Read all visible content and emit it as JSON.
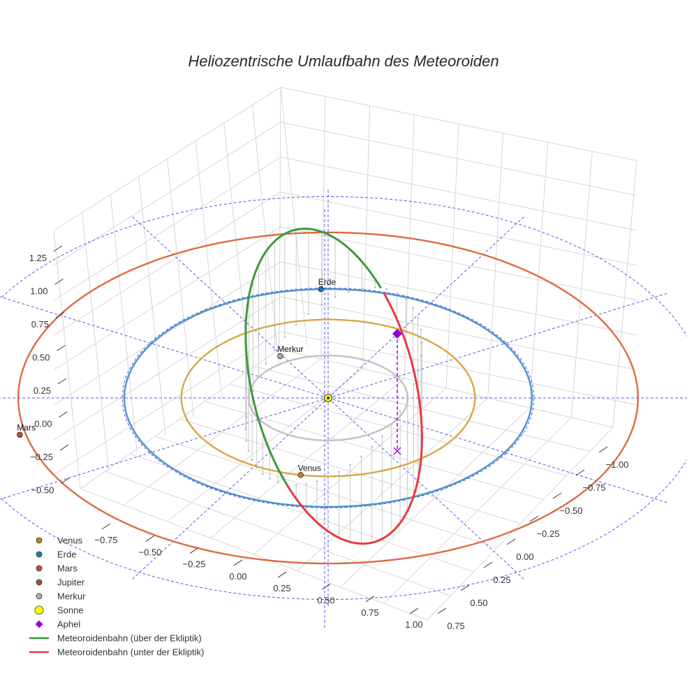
{
  "chart_data": {
    "type": "scatter3d",
    "title": "Heliozentrische Umlaufbahn des Meteoroiden",
    "axes": {
      "x_ticks": [
        "−0.75",
        "−0.50",
        "−0.25",
        "0.00",
        "0.25",
        "0.50",
        "0.75",
        "1.00"
      ],
      "y_ticks": [
        "−1.00",
        "−0.75",
        "−0.50",
        "−0.25",
        "0.00",
        "0.25",
        "0.50",
        "0.75"
      ],
      "z_ticks": [
        "1.25",
        "1.00",
        "0.75",
        "0.50",
        "0.25",
        "0.00",
        "−0.25",
        "−0.50"
      ],
      "x_range": [
        -0.85,
        1.05
      ],
      "y_range": [
        -1.1,
        0.85
      ],
      "z_range": [
        -0.55,
        1.35
      ]
    },
    "orbits": [
      {
        "name": "Merkur",
        "radius_au": 0.39,
        "color": "#c8bebe"
      },
      {
        "name": "Venus",
        "radius_au": 0.72,
        "color": "#d8a545"
      },
      {
        "name": "Erde",
        "radius_au": 1.0,
        "color": "#4a94c8"
      },
      {
        "name": "Mars",
        "radius_au": 1.52,
        "color": "#dd6a40"
      }
    ],
    "planets": [
      {
        "label": "Erde",
        "color": "#1f77b4"
      },
      {
        "label": "Merkur",
        "color": "#aaaaaa"
      },
      {
        "label": "Venus",
        "color": "#c7821a"
      },
      {
        "label": "Mars",
        "color": "#c1502e"
      }
    ],
    "meteoroid_orbit": {
      "above_label": "Meteoroidenbahn (über der Ekliptik)",
      "below_label": "Meteoroidenbahn (unter der Ekliptik)",
      "above_color": "#3a9a3a",
      "below_color": "#e8383f"
    },
    "aphel": {
      "label": "Aphel",
      "color": "#9400d3"
    },
    "legend": [
      {
        "label": "Venus",
        "color": "#c7821a",
        "symbol": "circle"
      },
      {
        "label": "Erde",
        "color": "#1f77b4",
        "symbol": "circle"
      },
      {
        "label": "Mars",
        "color": "#c1502e",
        "symbol": "circle"
      },
      {
        "label": "Jupiter",
        "color": "#a0522d",
        "symbol": "circle"
      },
      {
        "label": "Merkur",
        "color": "#bbaaaa",
        "symbol": "circle"
      },
      {
        "label": "Sonne",
        "color": "#ffff00",
        "symbol": "big-circle"
      },
      {
        "label": "Aphel",
        "color": "#9400d3",
        "symbol": "diamond"
      },
      {
        "label": "Meteoroidenbahn (über der Ekliptik)",
        "color": "#2a9a2a",
        "symbol": "line"
      },
      {
        "label": "Meteoroidenbahn (unter der Ekliptik)",
        "color": "#e8383f",
        "symbol": "line"
      }
    ]
  }
}
